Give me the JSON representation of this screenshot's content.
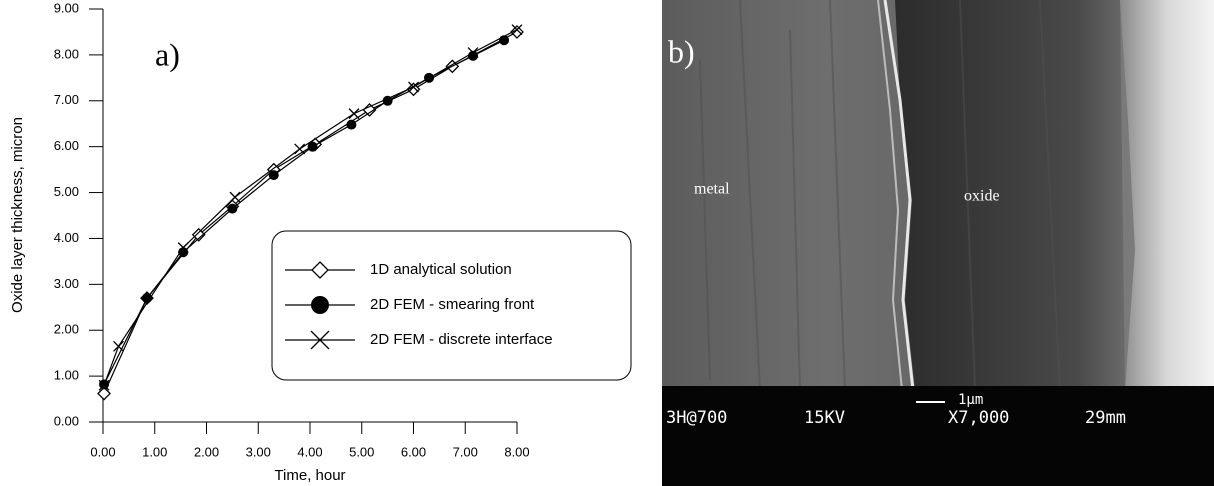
{
  "chart_data": {
    "type": "line",
    "panel_label": "a)",
    "xlabel": "Time, hour",
    "ylabel": "Oxide layer thickness, micron",
    "xlim": [
      0,
      8
    ],
    "ylim": [
      0,
      9
    ],
    "xticks": [
      {
        "value": 0,
        "label": "0.00"
      },
      {
        "value": 1,
        "label": "1.00"
      },
      {
        "value": 2,
        "label": "2.00"
      },
      {
        "value": 3,
        "label": "3.00"
      },
      {
        "value": 4,
        "label": "4.00"
      },
      {
        "value": 5,
        "label": "5.00"
      },
      {
        "value": 6,
        "label": "6.00"
      },
      {
        "value": 7,
        "label": "7.00"
      },
      {
        "value": 8,
        "label": "8.00"
      }
    ],
    "yticks": [
      {
        "value": 0,
        "label": "0.00"
      },
      {
        "value": 1,
        "label": "1.00"
      },
      {
        "value": 2,
        "label": "2.00"
      },
      {
        "value": 3,
        "label": "3.00"
      },
      {
        "value": 4,
        "label": "4.00"
      },
      {
        "value": 5,
        "label": "5.00"
      },
      {
        "value": 6,
        "label": "6.00"
      },
      {
        "value": 7,
        "label": "7.00"
      },
      {
        "value": 8,
        "label": "8.00"
      },
      {
        "value": 9,
        "label": "9.00"
      }
    ],
    "series": [
      {
        "name": "1D analytical solution",
        "color": "#000000",
        "marker": "diamond",
        "x": [
          0.02,
          0.85,
          1.85,
          2.5,
          3.3,
          4.1,
          5.15,
          6.0,
          6.75,
          8.0
        ],
        "values": [
          0.62,
          2.7,
          4.08,
          4.7,
          5.5,
          6.05,
          6.8,
          7.25,
          7.75,
          8.5
        ]
      },
      {
        "name": "2D FEM - smearing front",
        "color": "#000000",
        "marker": "circle",
        "x": [
          0.02,
          0.85,
          1.55,
          2.5,
          3.3,
          4.05,
          4.8,
          5.5,
          6.3,
          7.15,
          7.75
        ],
        "values": [
          0.82,
          2.7,
          3.7,
          4.65,
          5.38,
          6.0,
          6.48,
          7.0,
          7.5,
          7.98,
          8.32
        ]
      },
      {
        "name": "2D FEM - discrete interface",
        "color": "#000000",
        "marker": "x",
        "x": [
          0.02,
          0.3,
          1.55,
          2.55,
          3.8,
          4.85,
          6.0,
          7.15,
          8.0
        ],
        "values": [
          0.8,
          1.65,
          3.8,
          4.9,
          5.95,
          6.72,
          7.3,
          8.05,
          8.55
        ]
      }
    ]
  },
  "image": {
    "label": "b)",
    "annotations": [
      "metal",
      "oxide"
    ],
    "scale_bar": "1μm",
    "info": [
      "3H@700",
      "15KV",
      "X7,000",
      "29mm"
    ]
  }
}
